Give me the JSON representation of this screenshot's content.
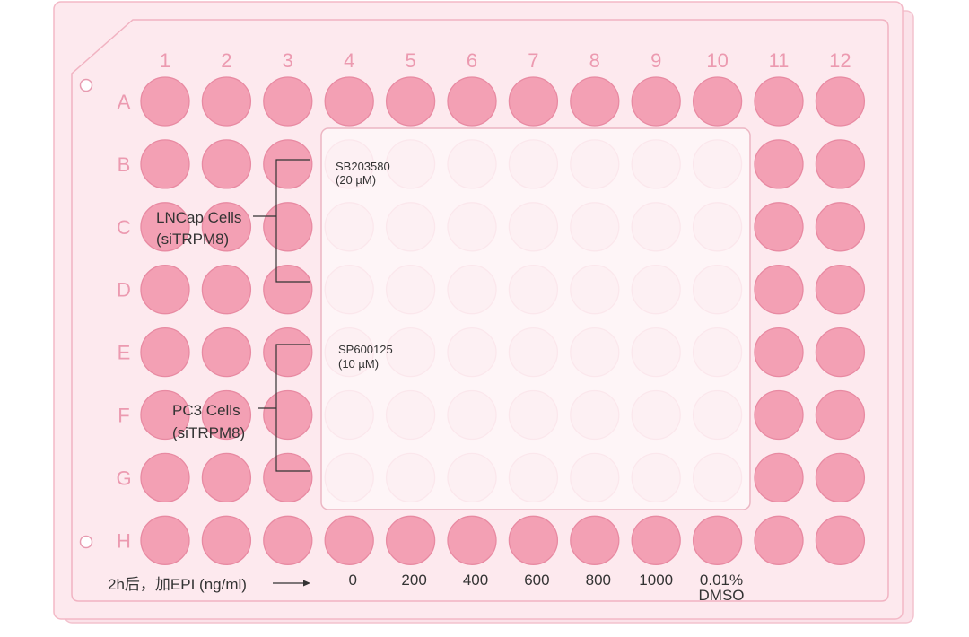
{
  "plate": {
    "column_labels": [
      "1",
      "2",
      "3",
      "4",
      "5",
      "6",
      "7",
      "8",
      "9",
      "10",
      "11",
      "12"
    ],
    "row_labels": [
      "A",
      "B",
      "C",
      "D",
      "E",
      "F",
      "G",
      "H"
    ]
  },
  "groups": {
    "lncap": {
      "line1": "LNCap Cells",
      "line2": "(siTRPM8)"
    },
    "pc3": {
      "line1": "PC3 Cells",
      "line2": "(siTRPM8)"
    }
  },
  "treatments": {
    "sb": {
      "line1": "SB203580",
      "line2": "(20 µM)"
    },
    "sp": {
      "line1": "SP600125",
      "line2": "(10 µM)"
    }
  },
  "epi": {
    "label": "2h后，加EPI (ng/ml)",
    "doses": [
      "0",
      "200",
      "400",
      "600",
      "800",
      "1000"
    ],
    "control": {
      "line1": "0.01%",
      "line2": "DMSO"
    }
  },
  "colors": {
    "plate_fill": "#fde9ee",
    "plate_stroke": "#f3b8c6",
    "label": "#ec9ab0",
    "well_full": "#f3a0b4",
    "well_full_stroke": "#e88aa2",
    "well_faint": "#fbdde5",
    "text": "#333333"
  }
}
